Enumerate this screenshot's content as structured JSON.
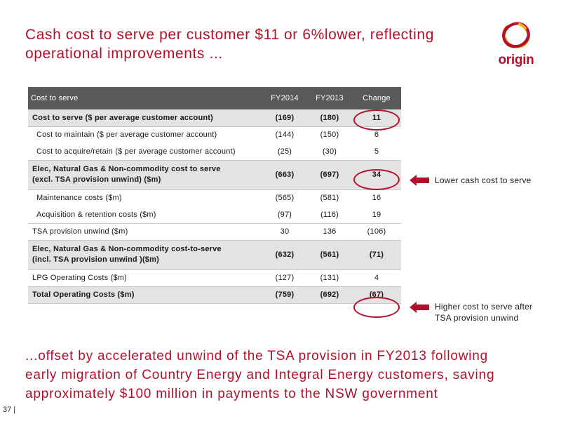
{
  "title_line1": "Cash cost to serve per customer $11 or 6%lower, reflecting",
  "title_line2": "operational improvements ...",
  "logo_text": "origin",
  "table": {
    "headers": [
      "Cost to serve",
      "FY2014",
      "FY2013",
      "Change"
    ],
    "rows": [
      {
        "label": "Cost to serve ($ per average customer account)",
        "fy2014": "(169)",
        "fy2013": "(180)",
        "change": "11"
      },
      {
        "label": "Cost to maintain ($ per average customer account)",
        "fy2014": "(144)",
        "fy2013": "(150)",
        "change": "6"
      },
      {
        "label": "Cost to acquire/retain ($ per average customer account)",
        "fy2014": "(25)",
        "fy2013": "(30)",
        "change": "5"
      },
      {
        "label_line1": "Elec, Natural Gas & Non-commodity cost to serve",
        "label_line2": "(excl. TSA provision unwind) ($m)",
        "fy2014": "(663)",
        "fy2013": "(697)",
        "change": "34"
      },
      {
        "label": "Maintenance costs ($m)",
        "fy2014": "(565)",
        "fy2013": "(581)",
        "change": "16"
      },
      {
        "label": "Acquisition & retention costs ($m)",
        "fy2014": "(97)",
        "fy2013": "(116)",
        "change": "19"
      },
      {
        "label": "TSA provision unwind ($m)",
        "fy2014": "30",
        "fy2013": "136",
        "change": "(106)"
      },
      {
        "label_line1": "Elec, Natural Gas & Non-commodity cost-to-serve",
        "label_line2": "(incl. TSA provision unwind )($m)",
        "fy2014": "(632)",
        "fy2013": "(561)",
        "change": "(71)"
      },
      {
        "label": "LPG Operating Costs ($m)",
        "fy2014": "(127)",
        "fy2013": "(131)",
        "change": "4"
      },
      {
        "label": "Total Operating Costs ($m)",
        "fy2014": "(759)",
        "fy2013": "(692)",
        "change": "(67)"
      }
    ]
  },
  "callouts": {
    "lower": "Lower cash cost to serve",
    "higher_line1": "Higher cost to serve after",
    "higher_line2": "TSA provision unwind"
  },
  "footer_line1": "...offset by accelerated unwind of the TSA provision in FY2013 following",
  "footer_line2": "early migration of Country Energy and Integral Energy customers, saving",
  "footer_line3": "approximately $100 million in payments to the NSW government",
  "page_number": "37 |",
  "colors": {
    "accent": "#b3102b",
    "header_bg": "#595959",
    "shade_bg": "#e3e3e3",
    "logo_yellow": "#f2b418"
  }
}
